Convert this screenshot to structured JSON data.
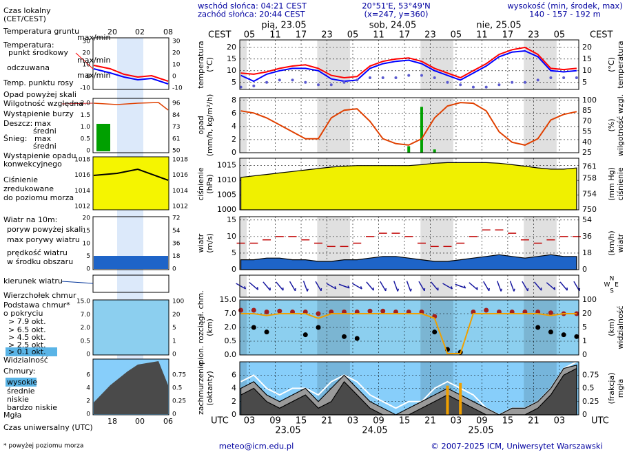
{
  "header": {
    "sunrise": "wschód słońca: 04:21 CEST",
    "sunset": "zachód słońca: 20:44 CEST",
    "coords": "20°51'E, 53°49'N",
    "grid_point": "(x=247, y=360)",
    "elevation_title": "wysokość (min, środek, max)",
    "elevation": "140 - 157 - 192 m",
    "days": [
      "pią, 23.05",
      "sob, 24.05",
      "nie, 25.05"
    ],
    "dates": [
      "23.05",
      "24.05",
      "25.05"
    ],
    "local_time": "CEST",
    "utc": "UTC"
  },
  "footer": {
    "email": "meteo@icm.edu.pl",
    "copyright": "© 2007-2025 ICM, Uniwersytet Warszawski",
    "note": "* powyżej poziomu morza"
  },
  "legend": {
    "local_time": [
      "Czas lokalny",
      "(CET/CEST)"
    ],
    "local_ticks": [
      "20",
      "02",
      "08"
    ],
    "utc_ticks": [
      "18",
      "00",
      "06"
    ],
    "utc_title": "Czas uniwersalny (UTC)",
    "texts": [
      "Temperatura gruntu",
      "max/min",
      "Temperatura:",
      "max/min",
      "max/min",
      "Opad powyżej skali",
      "Wystąpienie burzy",
      "Deszcz:",
      "max",
      "Śnieg:",
      "max",
      "średni",
      "Wystąpienie opadu",
      "konwekcyjnego",
      "Ciśnienie",
      "zredukowane",
      "do poziomu morza",
      "Wiatr na 10m:",
      "poryw powyżej skali",
      "w środku obszaru",
      "Podstawa chmur*",
      "o pokryciu",
      "> 6.5 okt.",
      "> 4.5 okt.",
      "> 2.5 okt.",
      "> 0.1 okt.",
      "Chmury:",
      "bardzo niskie"
    ],
    "mini": [
      {
        "left": [
          "30",
          "20",
          "10",
          "0",
          "-10"
        ],
        "right": [
          "30",
          "20",
          "10",
          "0",
          "-10"
        ]
      },
      {
        "left": [
          "2.0",
          "1.5",
          "1.0",
          "0.5",
          "0"
        ],
        "right": [
          "96",
          "84",
          "73",
          "61",
          "50"
        ]
      },
      {
        "left": [
          "1018",
          "1016",
          "1014",
          "1012"
        ],
        "right": [
          "1018",
          "1016",
          "1014",
          "1012"
        ]
      },
      {
        "left": [
          "20",
          "15",
          "10",
          "5",
          "0"
        ],
        "right": [
          "72",
          "54",
          "36",
          "18",
          "0"
        ]
      },
      {
        "left": [
          "15.0",
          "7.0",
          "2.0",
          "0.5",
          "0"
        ],
        "right": [
          "100",
          "20",
          "5",
          "1",
          "0"
        ]
      },
      {
        "left": [
          "6",
          "4",
          "2",
          "0"
        ],
        "right": [
          "0.75",
          "0.5",
          "0.25",
          "0"
        ]
      }
    ]
  },
  "chart_data": [
    {
      "type": "line",
      "ylabel": [
        "temperatura",
        "(°C)"
      ],
      "y2label": [
        "(°C)",
        "temperatura"
      ],
      "grid": true,
      "x": [
        3,
        6,
        9,
        12,
        15,
        18,
        21,
        24,
        27,
        30,
        33,
        36,
        39,
        42,
        45,
        48,
        51,
        54,
        57,
        60,
        63,
        66,
        69,
        72,
        75,
        78,
        81
      ],
      "xlim": [
        2.75,
        81.5
      ],
      "xticks": [
        {
          "value": 5,
          "label": "05"
        },
        {
          "value": 11,
          "label": "11"
        },
        {
          "value": 17,
          "label": "17"
        },
        {
          "value": 23,
          "label": "23"
        },
        {
          "value": 29,
          "label": "05"
        },
        {
          "value": 35,
          "label": "11"
        },
        {
          "value": 41,
          "label": "17"
        },
        {
          "value": 47,
          "label": "23"
        },
        {
          "value": 53,
          "label": "05"
        },
        {
          "value": 59,
          "label": "11"
        },
        {
          "value": 65,
          "label": "17"
        },
        {
          "value": 71,
          "label": "23"
        },
        {
          "value": 77,
          "label": "05"
        }
      ],
      "ylim": [
        2,
        23.2
      ],
      "yticks": [
        5,
        10,
        15,
        20
      ],
      "series": [
        {
          "name": "punkt środkowy",
          "type": "line",
          "color": "#ff0000",
          "values": [
            9,
            8.5,
            9.5,
            11,
            12,
            12.5,
            11,
            8,
            7,
            7.5,
            12,
            14,
            15,
            15.5,
            14,
            11,
            9,
            7,
            10,
            13,
            17,
            19,
            20,
            17,
            11,
            10.5,
            11
          ]
        },
        {
          "name": "odczuwana",
          "type": "line",
          "color": "#0000ff",
          "values": [
            8,
            5.5,
            8.5,
            10,
            11,
            11,
            10,
            6.5,
            5.5,
            6,
            11,
            13,
            14,
            14.5,
            13,
            10,
            8,
            6,
            9,
            12,
            16,
            18,
            18.5,
            16,
            10,
            9.5,
            10
          ]
        },
        {
          "name": "Temp. punktu rosy",
          "type": "dots",
          "color": "#5a5ad0",
          "values": [
            3,
            3.5,
            5,
            6,
            6,
            5,
            4,
            4,
            5,
            6,
            7,
            7,
            7,
            8,
            8,
            7,
            5,
            4,
            3,
            3,
            4,
            5,
            5,
            6,
            7,
            7,
            7
          ]
        }
      ]
    },
    {
      "type": "bar",
      "ylabel": [
        "opad",
        "(mm/h, kg/m²/h)"
      ],
      "y2label": [
        "(%)",
        "wilgotność wzgl."
      ],
      "grid": true,
      "ylim": [
        0,
        8.4
      ],
      "yticks": [
        0,
        2,
        4,
        6,
        8
      ],
      "y2lim": [
        25,
        104
      ],
      "y2ticks": [
        25,
        40,
        55,
        70,
        85,
        100
      ],
      "y2_color": "#a04000",
      "series": [
        {
          "name": "średni",
          "type": "bars",
          "color": "#00a000",
          "values": [
            0,
            0,
            0,
            0,
            0,
            0,
            0,
            0,
            0,
            0,
            0,
            0,
            0,
            1,
            7,
            0.5,
            0,
            0,
            0,
            0,
            0,
            0,
            0,
            0,
            0,
            0,
            0
          ]
        },
        {
          "name": "Wilgotność względna",
          "type": "line",
          "axis": "y2",
          "color": "#e04000",
          "values": [
            85,
            82,
            75,
            65,
            55,
            45,
            45,
            75,
            86,
            88,
            70,
            45,
            38,
            36,
            45,
            75,
            92,
            97,
            96,
            85,
            55,
            40,
            36,
            45,
            72,
            80,
            84
          ]
        }
      ]
    },
    {
      "type": "area",
      "ylabel": [
        "ciśnienie",
        "(hPa)"
      ],
      "y2label": [
        "(mm Hg)",
        "ciśnienie"
      ],
      "grid": true,
      "ylim": [
        1000,
        1017.5
      ],
      "yticks": [
        1000,
        1005,
        1010,
        1015
      ],
      "y2lim": [
        750,
        763.2
      ],
      "y2ticks": [
        750,
        754,
        758,
        761
      ],
      "series": [
        {
          "type": "area",
          "color": "#f0f000",
          "values": [
            1011,
            1011.5,
            1012,
            1012.5,
            1013,
            1013.5,
            1014,
            1014.5,
            1014.8,
            1015,
            1015,
            1015,
            1015,
            1015,
            1015.3,
            1015.8,
            1016,
            1016,
            1016,
            1016,
            1015.8,
            1015.3,
            1014.8,
            1014.2,
            1013.8,
            1013.8,
            1014.2
          ]
        }
      ]
    },
    {
      "type": "area",
      "ylabel": [
        "wiatr",
        "(m/s)"
      ],
      "y2label": [
        "(km/h)",
        "wiatr"
      ],
      "grid": true,
      "ylim": [
        0,
        16
      ],
      "yticks": [
        0,
        5,
        10,
        15
      ],
      "y2lim": [
        0,
        57.6
      ],
      "y2ticks": [
        0,
        18,
        36,
        54
      ],
      "series": [
        {
          "name": "max porywy wiatru",
          "type": "dashes",
          "color": "#c00000",
          "values": [
            8,
            8,
            9,
            10,
            10,
            9,
            8,
            7,
            7,
            8,
            10,
            11,
            11,
            10,
            8,
            7,
            7,
            8,
            10,
            12,
            12,
            11,
            9,
            8,
            9,
            10,
            10
          ]
        },
        {
          "name": "prędkość wiatru",
          "type": "area",
          "color": "#1e64c8",
          "values": [
            3,
            3,
            3.5,
            3.5,
            3,
            3,
            2.5,
            2.5,
            3,
            3,
            3.5,
            4,
            4,
            3.5,
            3,
            2.5,
            2.5,
            3,
            3.5,
            4,
            4.5,
            4,
            3.5,
            4,
            4.5,
            4,
            4
          ]
        }
      ]
    },
    {
      "type": "arrows",
      "compass": [
        "N",
        "W",
        "E",
        "S"
      ],
      "grid": true,
      "series": [
        {
          "name": "kierunek wiatru",
          "type": "arrows",
          "color": "#1a1aa0",
          "values": [
            300,
            310,
            320,
            320,
            330,
            340,
            330,
            300,
            290,
            300,
            320,
            330,
            340,
            340,
            330,
            320,
            300,
            290,
            310,
            330,
            340,
            340,
            330,
            320,
            310,
            320,
            330
          ]
        }
      ]
    },
    {
      "type": "scatter",
      "ylabel": [
        "pion. rozciągł. chm.",
        "(km)"
      ],
      "y2label": [
        "(km)",
        "widzialność"
      ],
      "grid": true,
      "yscale": "piecewise",
      "y2_color": "#c07000",
      "background": "#8ccfef",
      "ylim": [
        0,
        15
      ],
      "yticks": [
        {
          "value": 0,
          "label": "0.0"
        },
        {
          "value": 0.5,
          "label": "0.5"
        },
        {
          "value": 2,
          "label": "2.0"
        },
        {
          "value": 7,
          "label": "7.0"
        },
        {
          "value": 15,
          "label": "15.0"
        }
      ],
      "y2lim": [
        0,
        100
      ],
      "y2ticks": [
        0,
        1,
        5,
        20,
        100
      ],
      "series": [
        {
          "name": "Wierzchołek chmur",
          "type": "dots",
          "color": "#a02020",
          "values": [
            9,
            9,
            8,
            8.5,
            8,
            8,
            7,
            8,
            8,
            8,
            8.5,
            8.5,
            8,
            8,
            8,
            6,
            0.2,
            0.1,
            8,
            9,
            8,
            8,
            8,
            8,
            7.5,
            7,
            7
          ]
        },
        {
          "name": "> 7.9 okt.",
          "type": "dots",
          "color": "#000000",
          "values": [
            null,
            2,
            1.5,
            null,
            null,
            1.2,
            2,
            null,
            1,
            0.8,
            null,
            null,
            null,
            null,
            null,
            1.5,
            0.2,
            0.1,
            null,
            null,
            null,
            null,
            null,
            2,
            1.5,
            1.2,
            1
          ]
        },
        {
          "name": "Widzialność",
          "type": "line",
          "axis": "y2",
          "color": "#f0a000",
          "values": [
            20,
            20,
            18,
            20,
            20,
            20,
            15,
            20,
            20,
            20,
            20,
            20,
            20,
            20,
            20,
            15,
            0.1,
            0.1,
            20,
            20,
            20,
            20,
            20,
            20,
            18,
            20,
            20
          ]
        }
      ]
    },
    {
      "type": "area",
      "ylabel": [
        "zachmurzenie",
        "(oktanty)"
      ],
      "y2label": [
        "(frakcja)",
        "mgła"
      ],
      "grid": true,
      "y2_color": "#c07000",
      "background": "#87cefa",
      "xticks": [
        {
          "value": 5,
          "label": "03"
        },
        {
          "value": 11,
          "label": "09"
        },
        {
          "value": 17,
          "label": "15"
        },
        {
          "value": 23,
          "label": "21"
        },
        {
          "value": 29,
          "label": "03"
        },
        {
          "value": 35,
          "label": "09"
        },
        {
          "value": 41,
          "label": "15"
        },
        {
          "value": 47,
          "label": "21"
        },
        {
          "value": 53,
          "label": "03"
        },
        {
          "value": 59,
          "label": "09"
        },
        {
          "value": 65,
          "label": "15"
        },
        {
          "value": 71,
          "label": "21"
        },
        {
          "value": 77,
          "label": "03"
        }
      ],
      "ylim": [
        0,
        8
      ],
      "yticks": [
        0,
        2,
        4,
        6
      ],
      "y2lim": [
        0,
        1
      ],
      "y2ticks": [
        0,
        0.25,
        0.5,
        0.75
      ],
      "series": [
        {
          "name": "wysokie",
          "type": "line",
          "color": "#ffffff",
          "values": [
            5,
            6,
            4,
            3,
            4,
            4,
            3,
            5,
            6,
            5,
            3,
            2,
            1,
            2,
            2,
            4,
            5,
            4,
            3,
            1,
            0,
            1,
            1,
            2,
            4,
            7,
            8
          ]
        },
        {
          "name": "średnie",
          "type": "area",
          "color": "#9a9a9a",
          "values": [
            4,
            5,
            3,
            2,
            3,
            4,
            2,
            4,
            6,
            4,
            2,
            1,
            0,
            1,
            2,
            3,
            4,
            3,
            2,
            1,
            0,
            1,
            1,
            2,
            4,
            7,
            7.5
          ]
        },
        {
          "name": "niskie",
          "type": "area",
          "color": "#4a4a4a",
          "values": [
            3,
            4,
            2,
            1,
            2,
            3,
            1,
            2,
            5,
            3,
            1,
            0,
            0,
            0,
            1,
            2,
            3,
            2,
            1,
            0,
            0,
            0,
            0,
            1,
            3,
            6,
            7
          ]
        },
        {
          "name": "Mgła",
          "type": "bars",
          "axis": "y2",
          "color": "#f0a000",
          "values": [
            0,
            0,
            0,
            0,
            0,
            0,
            0,
            0,
            0,
            0,
            0,
            0,
            0,
            0,
            0,
            0,
            0.55,
            0.6,
            0,
            0,
            0,
            0,
            0,
            0,
            0,
            0,
            0
          ]
        }
      ]
    }
  ]
}
